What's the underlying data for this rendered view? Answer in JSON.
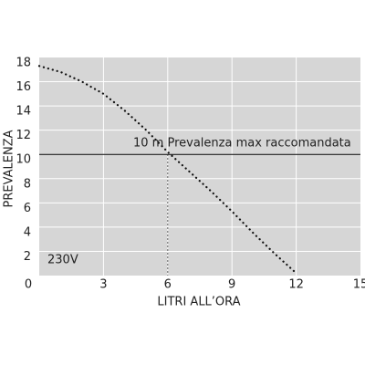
{
  "chart_data": {
    "type": "line",
    "x_label": "LITRI ALL’ORA",
    "y_label": "PREVALENZA",
    "annotation": "10 m Prevalenza max raccomandata",
    "curve_label": "230V",
    "x": [
      0,
      1,
      2,
      3,
      4,
      5,
      6,
      7,
      8,
      9,
      10,
      11,
      12
    ],
    "series": [
      {
        "color": "#111111",
        "values": [
          17.3,
          16.8,
          16,
          15,
          13.6,
          12,
          10.2,
          8.6,
          7,
          5.3,
          3.5,
          1.8,
          0.2
        ]
      }
    ],
    "reference_y": 10,
    "reference_x": 6,
    "xlim": [
      0,
      15
    ],
    "xticks": [
      0,
      3,
      6,
      9,
      12,
      15
    ],
    "ylim": [
      0,
      18
    ],
    "yticks": [
      2,
      4,
      6,
      8,
      10,
      12,
      14,
      16,
      18
    ],
    "grid": true,
    "background": "#d6d6d6"
  }
}
